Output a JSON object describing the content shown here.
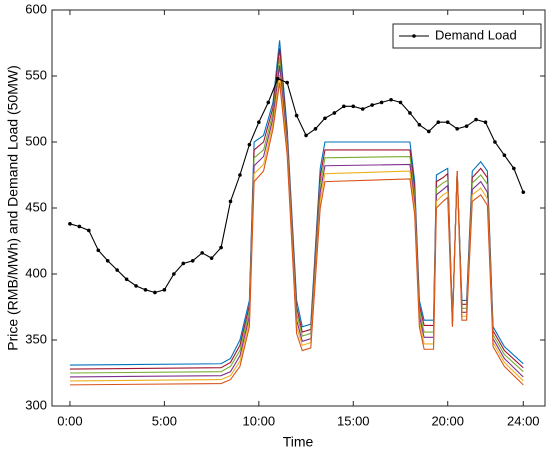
{
  "chart_data": {
    "type": "line",
    "xlabel": "Time",
    "ylabel": "Price (RMB/MWh) and Demand Load (50MW)",
    "xlim": [
      -0.95,
      25.15
    ],
    "ylim": [
      300,
      600
    ],
    "xticks": [
      {
        "value": 0,
        "label": "0:00"
      },
      {
        "value": 5,
        "label": "5:00"
      },
      {
        "value": 10,
        "label": "10:00"
      },
      {
        "value": 15,
        "label": "15:00"
      },
      {
        "value": 20,
        "label": "20:00"
      },
      {
        "value": 24,
        "label": "24:00"
      }
    ],
    "yticks": [
      300,
      350,
      400,
      450,
      500,
      550,
      600
    ],
    "legend": "northeast",
    "x": [
      0,
      8,
      8.5,
      9,
      9.5,
      9.75,
      10.25,
      10.75,
      11.1,
      11.5,
      12,
      12.3,
      12.75,
      13.25,
      13.5,
      18,
      18.25,
      18.5,
      18.75,
      19.25,
      19.4,
      19.75,
      20,
      20.25,
      20.5,
      20.75,
      21,
      21.3,
      21.75,
      22.1,
      22.4,
      23,
      24
    ],
    "series": [
      {
        "color": "#0072BD",
        "values": [
          331,
          332,
          336,
          350,
          380,
          500,
          505,
          530,
          577,
          510,
          380,
          360,
          362,
          480,
          500,
          500,
          470,
          380,
          365,
          365,
          475,
          478,
          480,
          365,
          478,
          380,
          380,
          478,
          485,
          478,
          360,
          345,
          332
        ]
      },
      {
        "color": "#A2142F",
        "values": [
          328,
          329,
          333,
          346,
          376,
          494,
          500,
          526,
          571,
          506,
          375,
          356,
          358,
          474,
          494,
          494,
          465,
          376,
          361,
          361,
          470,
          473,
          476,
          364,
          478,
          377,
          377,
          473,
          480,
          473,
          357,
          342,
          329
        ]
      },
      {
        "color": "#77AC30",
        "values": [
          325,
          326,
          330,
          342,
          372,
          488,
          494,
          522,
          564,
          502,
          370,
          353,
          355,
          468,
          488,
          489,
          460,
          372,
          356,
          356,
          465,
          469,
          471,
          363,
          478,
          374,
          374,
          469,
          475,
          468,
          354,
          339,
          326
        ]
      },
      {
        "color": "#7E2F8E",
        "values": [
          322,
          323,
          326,
          338,
          368,
          482,
          489,
          518,
          558,
          498,
          365,
          349,
          351,
          462,
          482,
          483,
          455,
          368,
          352,
          352,
          460,
          464,
          467,
          362,
          478,
          371,
          371,
          464,
          470,
          462,
          351,
          336,
          322
        ]
      },
      {
        "color": "#EDB120",
        "values": [
          319,
          320,
          323,
          334,
          364,
          476,
          483,
          514,
          551,
          494,
          360,
          346,
          348,
          456,
          476,
          478,
          450,
          364,
          347,
          347,
          455,
          460,
          462,
          361,
          478,
          368,
          368,
          460,
          465,
          457,
          348,
          333,
          319
        ]
      },
      {
        "color": "#D95319",
        "values": [
          316,
          317,
          320,
          330,
          360,
          470,
          478,
          510,
          545,
          490,
          355,
          342,
          344,
          450,
          470,
          472,
          445,
          360,
          343,
          343,
          450,
          455,
          458,
          360,
          478,
          365,
          365,
          455,
          460,
          452,
          345,
          330,
          316
        ]
      },
      {
        "name": "Demand Load",
        "color": "#000000",
        "marker": "dot",
        "x": [
          0,
          0.5,
          1,
          1.5,
          2,
          2.5,
          3,
          3.5,
          4,
          4.5,
          5,
          5.5,
          6,
          6.5,
          7,
          7.5,
          8,
          8.5,
          9,
          9.5,
          10,
          10.5,
          11,
          11.5,
          12,
          12.5,
          13,
          13.5,
          14,
          14.5,
          15,
          15.5,
          16,
          16.5,
          17,
          17.5,
          18,
          18.5,
          19,
          19.5,
          20,
          20.5,
          21,
          21.5,
          22,
          22.5,
          23,
          23.5,
          24
        ],
        "values": [
          438,
          436,
          433,
          418,
          410,
          403,
          396,
          391,
          388,
          386,
          388,
          400,
          408,
          410,
          416,
          412,
          420,
          455,
          475,
          498,
          515,
          530,
          548,
          545,
          520,
          505,
          510,
          518,
          522,
          527,
          527,
          525,
          528,
          530,
          532,
          530,
          522,
          513,
          508,
          515,
          515,
          510,
          512,
          517,
          515,
          500,
          490,
          480,
          462
        ]
      }
    ]
  }
}
